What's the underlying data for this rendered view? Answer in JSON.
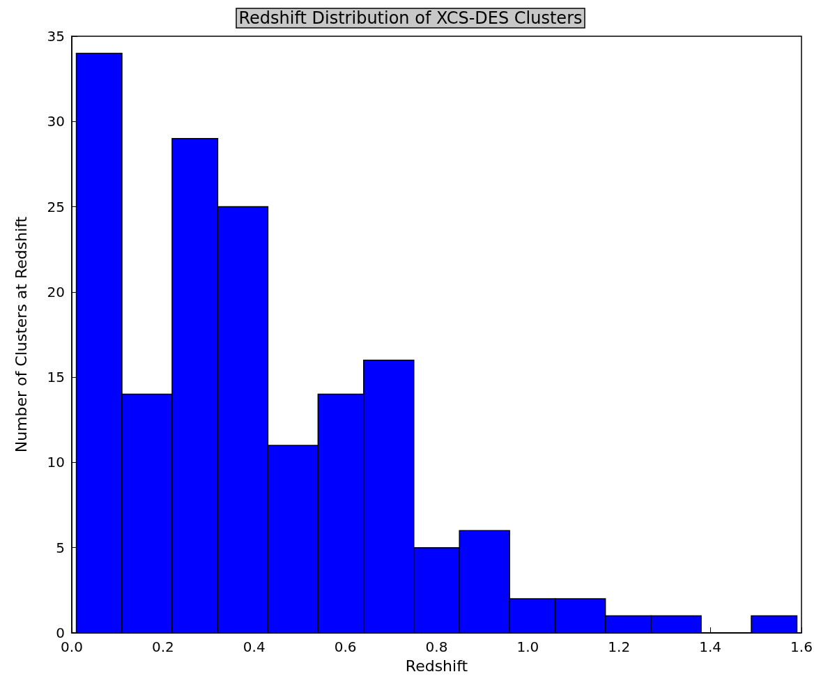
{
  "chart_data": {
    "type": "histogram",
    "title": "Redshift Distribution of XCS-DES Clusters",
    "xlabel": "Redshift",
    "ylabel": "Number of Clusters at Redshift",
    "bins": [
      0.01,
      0.11,
      0.22,
      0.32,
      0.43,
      0.54,
      0.64,
      0.75,
      0.85,
      0.96,
      1.06,
      1.17,
      1.27,
      1.38,
      1.49,
      1.59
    ],
    "values": [
      34,
      14,
      29,
      25,
      11,
      14,
      16,
      5,
      6,
      2,
      2,
      1,
      1,
      0,
      1
    ],
    "color": "#0000ff",
    "xlim": [
      0,
      1.6
    ],
    "xticks": [
      {
        "value": 0,
        "label": "0.0"
      },
      {
        "value": 0.2,
        "label": "0.2"
      },
      {
        "value": 0.4,
        "label": "0.4"
      },
      {
        "value": 0.6,
        "label": "0.6"
      },
      {
        "value": 0.8,
        "label": "0.8"
      },
      {
        "value": 1,
        "label": "1.0"
      },
      {
        "value": 1.2,
        "label": "1.2"
      },
      {
        "value": 1.4,
        "label": "1.4"
      },
      {
        "value": 1.6,
        "label": "1.6"
      }
    ],
    "ylim": [
      0,
      35
    ],
    "yticks": [
      0,
      5,
      10,
      15,
      20,
      25,
      30,
      35
    ],
    "grid": false
  }
}
